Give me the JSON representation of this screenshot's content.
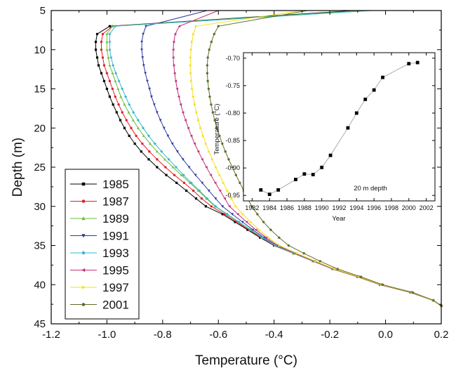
{
  "chart_data": [
    {
      "type": "line",
      "xlabel": "Temperature (°C)",
      "ylabel": "Depth (m)",
      "xlim": [
        -1.2,
        0.2
      ],
      "ylim": [
        5,
        45
      ],
      "y_inverted": true,
      "x_ticks": [
        "-1.2",
        "-1.0",
        "-0.8",
        "-0.6",
        "-0.4",
        "-0.2",
        "0.0",
        "0.2"
      ],
      "y_ticks": [
        "5",
        "10",
        "15",
        "20",
        "25",
        "30",
        "35",
        "40",
        "45"
      ],
      "legend_position": "lower-left",
      "depths": [
        5,
        7,
        8,
        9,
        10,
        11,
        12,
        13,
        14,
        15,
        16,
        17,
        18,
        19,
        20,
        21,
        22,
        23,
        24,
        25,
        26,
        27,
        28,
        29,
        30,
        31,
        32,
        33,
        34,
        35,
        36,
        37,
        38,
        39,
        40,
        41,
        42,
        42.7
      ],
      "series": [
        {
          "name": "1985",
          "color": "#000000",
          "marker": "square",
          "values": [
            -0.11,
            -0.99,
            -1.035,
            -1.04,
            -1.04,
            -1.035,
            -1.03,
            -1.02,
            -1.01,
            -1.0,
            -0.99,
            -0.978,
            -0.965,
            -0.952,
            -0.937,
            -0.92,
            -0.9,
            -0.877,
            -0.85,
            -0.82,
            -0.787,
            -0.75,
            -0.715,
            -0.68,
            -0.645,
            -0.585,
            -0.54,
            -0.495,
            -0.45,
            -0.4,
            -0.33,
            -0.26,
            -0.19,
            -0.1,
            -0.02,
            0.09,
            0.17,
            0.2
          ]
        },
        {
          "name": "1987",
          "color": "#e0202b",
          "marker": "circle",
          "values": [
            -0.06,
            -0.98,
            -1.015,
            -1.02,
            -1.02,
            -1.015,
            -1.01,
            -1.0,
            -0.99,
            -0.98,
            -0.97,
            -0.958,
            -0.945,
            -0.93,
            -0.913,
            -0.895,
            -0.873,
            -0.848,
            -0.82,
            -0.79,
            -0.758,
            -0.723,
            -0.69,
            -0.66,
            -0.625,
            -0.578,
            -0.534,
            -0.49,
            -0.446,
            -0.398,
            -0.33,
            -0.26,
            -0.19,
            -0.1,
            -0.02,
            0.09,
            0.17,
            0.2
          ]
        },
        {
          "name": "1989",
          "color": "#6bbf3a",
          "marker": "triangle-up",
          "values": [
            -0.08,
            -0.98,
            -1.0,
            -1.0,
            -1.0,
            -0.995,
            -0.99,
            -0.98,
            -0.97,
            -0.96,
            -0.95,
            -0.937,
            -0.922,
            -0.906,
            -0.888,
            -0.868,
            -0.845,
            -0.82,
            -0.792,
            -0.763,
            -0.733,
            -0.702,
            -0.672,
            -0.643,
            -0.612,
            -0.57,
            -0.528,
            -0.486,
            -0.443,
            -0.396,
            -0.328,
            -0.258,
            -0.188,
            -0.098,
            -0.018,
            0.092,
            0.17,
            0.2
          ]
        },
        {
          "name": "1991",
          "color": "#2e3a9f",
          "marker": "triangle-down",
          "values": [
            -0.64,
            -0.86,
            -0.87,
            -0.875,
            -0.875,
            -0.872,
            -0.868,
            -0.862,
            -0.855,
            -0.847,
            -0.84,
            -0.83,
            -0.82,
            -0.808,
            -0.795,
            -0.781,
            -0.765,
            -0.747,
            -0.727,
            -0.705,
            -0.682,
            -0.658,
            -0.634,
            -0.61,
            -0.585,
            -0.55,
            -0.513,
            -0.476,
            -0.436,
            -0.392,
            -0.325,
            -0.256,
            -0.186,
            -0.097,
            -0.017,
            0.093,
            0.17,
            0.2
          ]
        },
        {
          "name": "1993",
          "color": "#37b8cf",
          "marker": "diamond",
          "values": [
            -0.05,
            -0.97,
            -0.99,
            -0.99,
            -0.99,
            -0.985,
            -0.978,
            -0.968,
            -0.957,
            -0.945,
            -0.933,
            -0.92,
            -0.905,
            -0.888,
            -0.87,
            -0.85,
            -0.828,
            -0.804,
            -0.778,
            -0.752,
            -0.725,
            -0.697,
            -0.668,
            -0.64,
            -0.61,
            -0.568,
            -0.526,
            -0.484,
            -0.441,
            -0.395,
            -0.327,
            -0.257,
            -0.187,
            -0.097,
            -0.017,
            0.093,
            0.17,
            0.2
          ]
        },
        {
          "name": "1995",
          "color": "#c2307a",
          "marker": "triangle-left",
          "values": [
            -0.6,
            -0.74,
            -0.755,
            -0.76,
            -0.762,
            -0.762,
            -0.76,
            -0.757,
            -0.753,
            -0.748,
            -0.742,
            -0.735,
            -0.727,
            -0.718,
            -0.708,
            -0.697,
            -0.685,
            -0.672,
            -0.658,
            -0.643,
            -0.627,
            -0.611,
            -0.594,
            -0.577,
            -0.56,
            -0.53,
            -0.498,
            -0.465,
            -0.428,
            -0.387,
            -0.322,
            -0.254,
            -0.185,
            -0.096,
            -0.016,
            0.094,
            0.17,
            0.2
          ]
        },
        {
          "name": "1997",
          "color": "#f5e11a",
          "marker": "triangle-right",
          "values": [
            -0.3,
            -0.68,
            -0.69,
            -0.695,
            -0.698,
            -0.7,
            -0.7,
            -0.699,
            -0.697,
            -0.694,
            -0.69,
            -0.685,
            -0.679,
            -0.672,
            -0.664,
            -0.655,
            -0.645,
            -0.634,
            -0.622,
            -0.609,
            -0.596,
            -0.582,
            -0.568,
            -0.553,
            -0.538,
            -0.512,
            -0.484,
            -0.454,
            -0.42,
            -0.381,
            -0.318,
            -0.251,
            -0.183,
            -0.095,
            -0.015,
            0.095,
            0.17,
            0.2
          ]
        },
        {
          "name": "2001",
          "color": "#5f6e2a",
          "marker": "hexagon",
          "values": [
            -0.28,
            -0.6,
            -0.615,
            -0.625,
            -0.633,
            -0.638,
            -0.64,
            -0.64,
            -0.638,
            -0.635,
            -0.631,
            -0.626,
            -0.62,
            -0.613,
            -0.605,
            -0.596,
            -0.586,
            -0.575,
            -0.563,
            -0.55,
            -0.537,
            -0.523,
            -0.509,
            -0.495,
            -0.48,
            -0.46,
            -0.438,
            -0.412,
            -0.382,
            -0.348,
            -0.293,
            -0.235,
            -0.172,
            -0.088,
            -0.01,
            0.098,
            0.172,
            0.2
          ]
        }
      ]
    },
    {
      "type": "line",
      "title": "20 m depth",
      "xlabel": "Year",
      "ylabel": "Temperature (°C)",
      "xlim": [
        1981,
        2003
      ],
      "ylim": [
        -0.96,
        -0.69
      ],
      "x_ticks": [
        "1982",
        "1984",
        "1986",
        "1988",
        "1990",
        "1992",
        "1994",
        "1996",
        "1998",
        "2000",
        "2002"
      ],
      "y_ticks": [
        "-0.70",
        "-0.75",
        "-0.80",
        "-0.85",
        "-0.90",
        "-0.95"
      ],
      "color": "#000000",
      "marker": "square",
      "x": [
        1983,
        1984,
        1985,
        1987,
        1988,
        1989,
        1990,
        1991,
        1993,
        1994,
        1995,
        1996,
        1997,
        2000,
        2001
      ],
      "y": [
        -0.94,
        -0.948,
        -0.94,
        -0.921,
        -0.911,
        -0.912,
        -0.899,
        -0.877,
        -0.827,
        -0.8,
        -0.775,
        -0.758,
        -0.735,
        -0.71,
        -0.708
      ]
    }
  ]
}
